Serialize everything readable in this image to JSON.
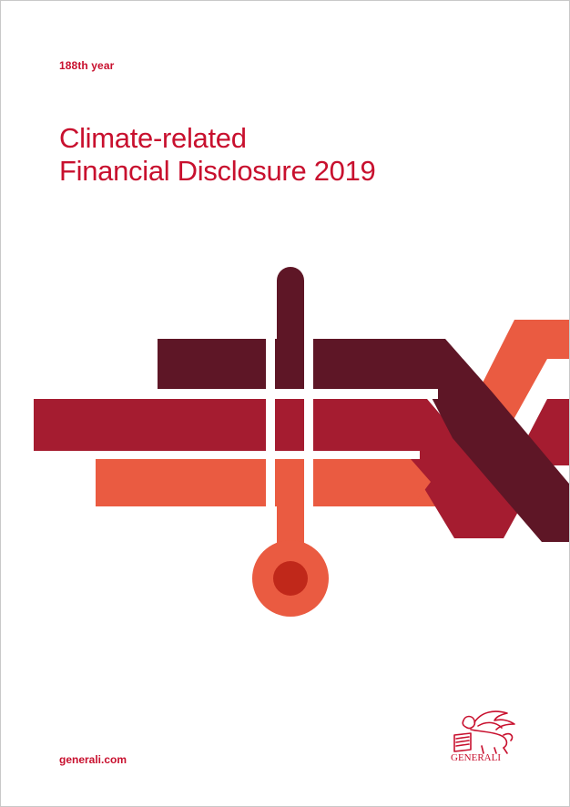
{
  "cover": {
    "anniversary": "188th year",
    "title_line1": "Climate-related",
    "title_line2": "Financial Disclosure 2019",
    "website": "generali.com",
    "brand_logo_text": "GENERALI"
  },
  "colors": {
    "brand_red": "#c8102e",
    "dark_maroon": "#5e1626",
    "crimson": "#a51c30",
    "coral": "#ea5b41",
    "bulb_core": "#c0281a"
  },
  "icons": {
    "illustration": "thermometer-and-crossing-bands-icon",
    "logo": "generali-winged-lion-icon"
  }
}
